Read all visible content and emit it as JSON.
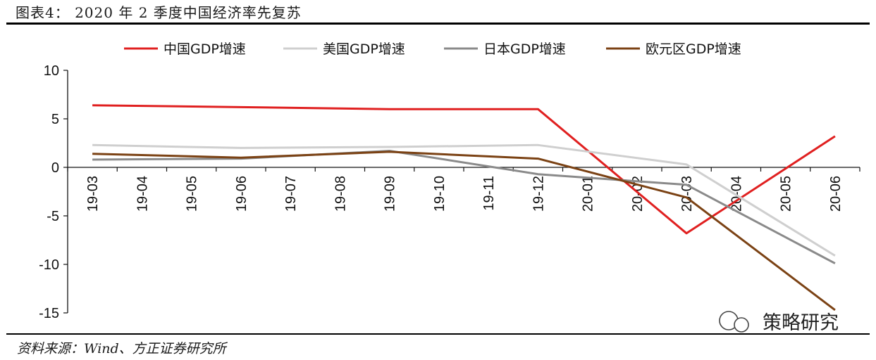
{
  "figure": {
    "title": "图表4：   2020 年 2 季度中国经济率先复苏",
    "source": "资料来源：Wind、方正证券研究所",
    "watermark": "策略研究"
  },
  "chart_data": {
    "type": "line",
    "title": "",
    "xlabel": "",
    "ylabel": "",
    "categories": [
      "19-03",
      "19-04",
      "19-05",
      "19-06",
      "19-07",
      "19-08",
      "19-09",
      "19-10",
      "19-11",
      "19-12",
      "20-01",
      "20-02",
      "20-03",
      "20-04",
      "20-05",
      "20-06"
    ],
    "ylim": [
      -15,
      10
    ],
    "yticks": [
      10,
      5,
      0,
      -5,
      -10,
      -15
    ],
    "legend_position": "top",
    "series": [
      {
        "name": "中国GDP增速",
        "color": "#e02020",
        "points": [
          [
            0,
            6.4
          ],
          [
            3,
            6.2
          ],
          [
            6,
            6.0
          ],
          [
            9,
            6.0
          ],
          [
            12,
            -6.8
          ],
          [
            15,
            3.2
          ]
        ]
      },
      {
        "name": "美国GDP增速",
        "color": "#cfcfcf",
        "points": [
          [
            0,
            2.3
          ],
          [
            3,
            2.0
          ],
          [
            6,
            2.1
          ],
          [
            9,
            2.3
          ],
          [
            12,
            0.3
          ],
          [
            15,
            -9.1
          ]
        ]
      },
      {
        "name": "日本GDP增速",
        "color": "#8a8a8a",
        "points": [
          [
            0,
            0.8
          ],
          [
            3,
            0.9
          ],
          [
            6,
            1.7
          ],
          [
            9,
            -0.7
          ],
          [
            12,
            -1.8
          ],
          [
            15,
            -9.9
          ]
        ]
      },
      {
        "name": "欧元区GDP增速",
        "color": "#7b4214",
        "points": [
          [
            0,
            1.4
          ],
          [
            3,
            1.0
          ],
          [
            6,
            1.6
          ],
          [
            9,
            0.9
          ],
          [
            12,
            -3.1
          ],
          [
            15,
            -14.7
          ]
        ]
      }
    ]
  }
}
